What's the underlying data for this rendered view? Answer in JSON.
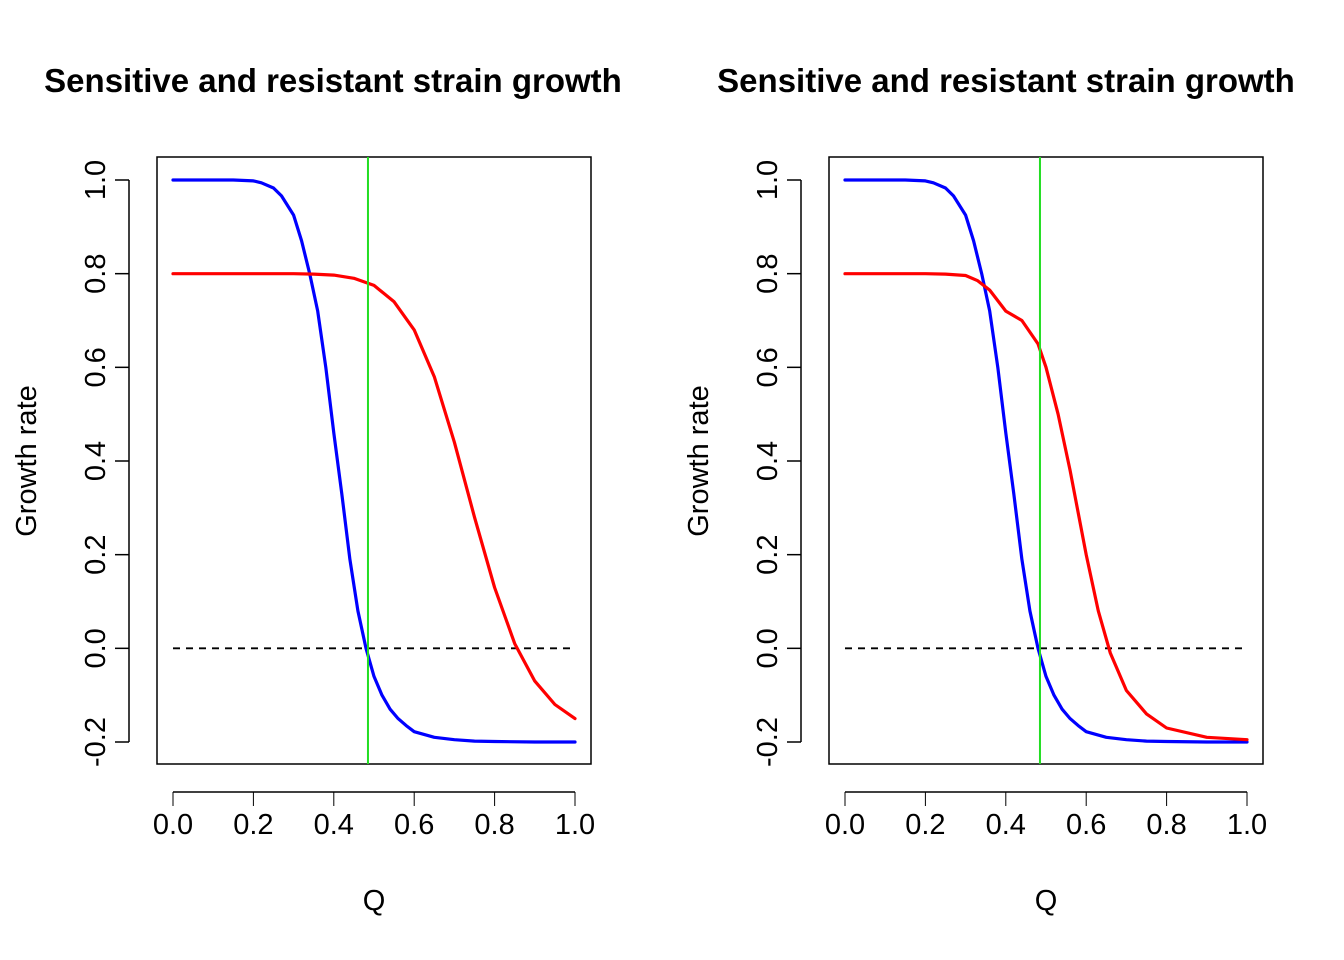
{
  "chart_data": [
    {
      "type": "line",
      "title": "Sensitive and resistant strain growth",
      "xlabel": "Q",
      "ylabel": "Growth rate",
      "xlim": [
        0,
        1
      ],
      "ylim": [
        -0.2,
        1.0
      ],
      "x_ticks": [
        "0.0",
        "0.2",
        "0.4",
        "0.6",
        "0.8",
        "1.0"
      ],
      "y_ticks": [
        "-0.2",
        "0.0",
        "0.2",
        "0.4",
        "0.6",
        "0.8",
        "1.0"
      ],
      "vline": {
        "x": 0.485,
        "color": "#22dd22"
      },
      "hline": {
        "y": 0.0,
        "x_range": [
          0,
          1
        ],
        "style": "dashed",
        "color": "#000000"
      },
      "series": [
        {
          "color": "#0000ff",
          "x": [
            0.0,
            0.05,
            0.1,
            0.15,
            0.2,
            0.22,
            0.25,
            0.27,
            0.3,
            0.32,
            0.34,
            0.36,
            0.38,
            0.4,
            0.42,
            0.44,
            0.46,
            0.48,
            0.5,
            0.52,
            0.54,
            0.56,
            0.58,
            0.6,
            0.65,
            0.7,
            0.75,
            0.8,
            0.9,
            1.0
          ],
          "y": [
            1.0,
            1.0,
            1.0,
            1.0,
            0.998,
            0.994,
            0.983,
            0.966,
            0.925,
            0.87,
            0.8,
            0.72,
            0.6,
            0.46,
            0.33,
            0.19,
            0.08,
            0.0,
            -0.06,
            -0.1,
            -0.13,
            -0.15,
            -0.165,
            -0.178,
            -0.19,
            -0.195,
            -0.198,
            -0.199,
            -0.2,
            -0.2
          ]
        },
        {
          "color": "#ff0000",
          "x": [
            0.0,
            0.1,
            0.2,
            0.3,
            0.35,
            0.4,
            0.45,
            0.5,
            0.55,
            0.6,
            0.65,
            0.7,
            0.75,
            0.8,
            0.85,
            0.9,
            0.95,
            1.0
          ],
          "y": [
            0.8,
            0.8,
            0.8,
            0.8,
            0.799,
            0.797,
            0.79,
            0.775,
            0.74,
            0.68,
            0.58,
            0.44,
            0.28,
            0.13,
            0.01,
            -0.07,
            -0.12,
            -0.15
          ]
        }
      ]
    },
    {
      "type": "line",
      "title": "Sensitive and resistant strain growth",
      "xlabel": "Q",
      "ylabel": "Growth rate",
      "xlim": [
        0,
        1
      ],
      "ylim": [
        -0.2,
        1.0
      ],
      "x_ticks": [
        "0.0",
        "0.2",
        "0.4",
        "0.6",
        "0.8",
        "1.0"
      ],
      "y_ticks": [
        "-0.2",
        "0.0",
        "0.2",
        "0.4",
        "0.6",
        "0.8",
        "1.0"
      ],
      "vline": {
        "x": 0.485,
        "color": "#22dd22"
      },
      "hline": {
        "y": 0.0,
        "x_range": [
          0,
          1
        ],
        "style": "dashed",
        "color": "#000000"
      },
      "series": [
        {
          "color": "#0000ff",
          "x": [
            0.0,
            0.05,
            0.1,
            0.15,
            0.2,
            0.22,
            0.25,
            0.27,
            0.3,
            0.32,
            0.34,
            0.36,
            0.38,
            0.4,
            0.42,
            0.44,
            0.46,
            0.48,
            0.5,
            0.52,
            0.54,
            0.56,
            0.58,
            0.6,
            0.65,
            0.7,
            0.75,
            0.8,
            0.9,
            1.0
          ],
          "y": [
            1.0,
            1.0,
            1.0,
            1.0,
            0.998,
            0.994,
            0.983,
            0.966,
            0.925,
            0.87,
            0.8,
            0.72,
            0.6,
            0.46,
            0.33,
            0.19,
            0.08,
            0.0,
            -0.06,
            -0.1,
            -0.13,
            -0.15,
            -0.165,
            -0.178,
            -0.19,
            -0.195,
            -0.198,
            -0.199,
            -0.2,
            -0.2
          ]
        },
        {
          "color": "#ff0000",
          "x": [
            0.0,
            0.1,
            0.2,
            0.25,
            0.3,
            0.33,
            0.36,
            0.4,
            0.44,
            0.48,
            0.5,
            0.53,
            0.56,
            0.6,
            0.63,
            0.66,
            0.7,
            0.75,
            0.8,
            0.9,
            1.0
          ],
          "y": [
            0.8,
            0.8,
            0.8,
            0.799,
            0.796,
            0.785,
            0.765,
            0.72,
            0.7,
            0.65,
            0.6,
            0.5,
            0.38,
            0.2,
            0.08,
            -0.01,
            -0.09,
            -0.14,
            -0.17,
            -0.19,
            -0.195
          ]
        }
      ]
    }
  ]
}
